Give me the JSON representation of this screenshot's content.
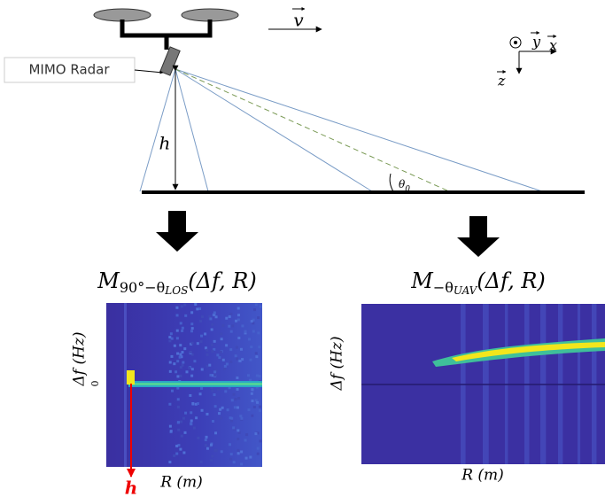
{
  "drone": {
    "radar_label": "MIMO Radar",
    "velocity_label": "v",
    "axis_y": "y",
    "axis_x": "x",
    "axis_z": "z",
    "height_label": "h",
    "angle_symbol": "θ",
    "angle_subscript": "0"
  },
  "plots": [
    {
      "title_base": "M",
      "title_subscript": "90°−θ",
      "title_subsubscript": "LOS",
      "title_args": "(Δf, R)",
      "y_label": "Δf (Hz)",
      "zero_label": "0",
      "x_label": "R (m)",
      "marker_label": "h"
    },
    {
      "title_base": "M",
      "title_subscript": "−θ",
      "title_subsubscript": "UAV",
      "title_args": "(Δf, R)",
      "y_label": "Δf (Hz)",
      "x_label": "R (m)"
    }
  ]
}
